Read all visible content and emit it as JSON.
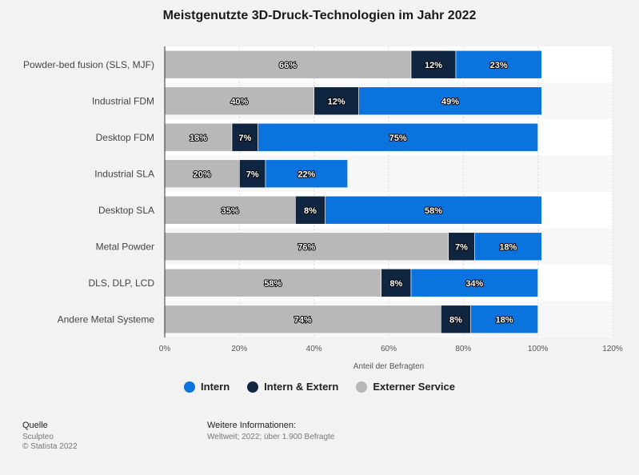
{
  "chart_data": {
    "type": "bar",
    "orientation": "horizontal",
    "stacked": true,
    "title": "Meistgenutzte 3D-Druck-Technologien im Jahr 2022",
    "xlabel": "Anteil der Befragten",
    "ylabel": "",
    "xlim": [
      0,
      120
    ],
    "xticks": [
      "0%",
      "20%",
      "40%",
      "60%",
      "80%",
      "100%",
      "120%"
    ],
    "categories": [
      "Powder-bed fusion (SLS, MJF)",
      "Industrial FDM",
      "Desktop FDM",
      "Industrial SLA",
      "Desktop SLA",
      "Metal Powder",
      "DLS, DLP, LCD",
      "Andere Metal Systeme"
    ],
    "series": [
      {
        "name": "Externer Service",
        "color": "#b8b8b8",
        "values": [
          66,
          40,
          18,
          20,
          35,
          76,
          58,
          74
        ]
      },
      {
        "name": "Intern & Extern",
        "color": "#0f2540",
        "values": [
          12,
          12,
          7,
          7,
          8,
          7,
          8,
          8
        ]
      },
      {
        "name": "Intern",
        "color": "#0a73de",
        "values": [
          23,
          49,
          75,
          22,
          58,
          18,
          34,
          18
        ]
      }
    ],
    "legend": [
      {
        "name": "Intern",
        "color": "#0a73de"
      },
      {
        "name": "Intern & Extern",
        "color": "#0f2540"
      },
      {
        "name": "Externer Service",
        "color": "#b8b8b8"
      }
    ],
    "legend_position": "bottom",
    "grid": true
  },
  "footer": {
    "source_heading": "Quelle",
    "source_name": "Sculpteo",
    "copyright": "© Statista 2022",
    "info_heading": "Weitere Informationen:",
    "info_text": "Weltweit; 2022; über 1.900 Befragte"
  }
}
